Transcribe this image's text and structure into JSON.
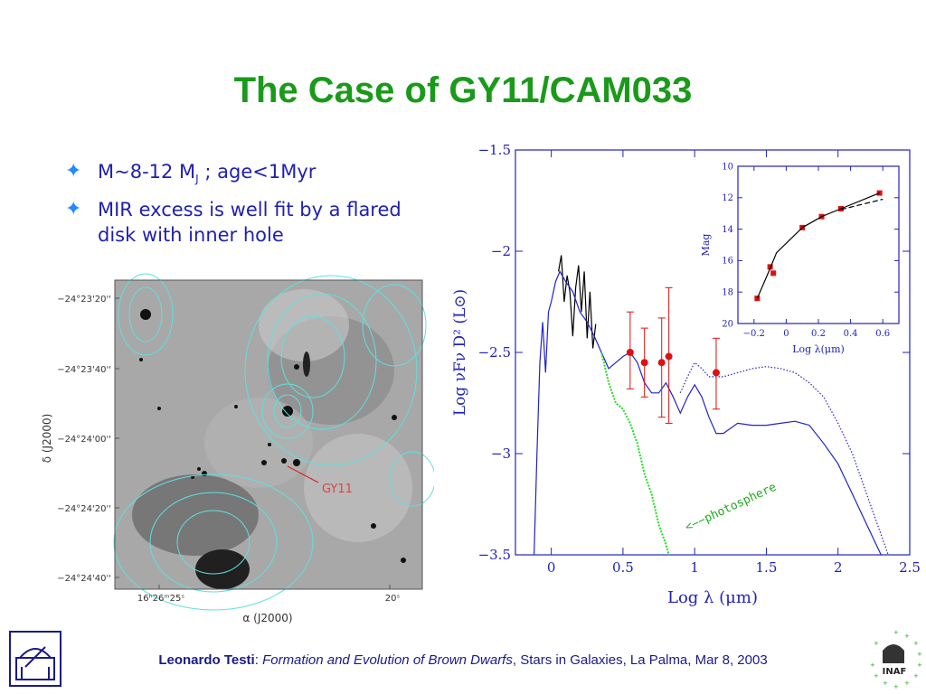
{
  "slide": {
    "title": "The Case of GY11/CAM033",
    "bullets": [
      {
        "pre": "M~8-12 M",
        "sub": "J",
        "post": " ; age<1Myr"
      },
      {
        "text_line1": "MIR excess is well fit by a flared",
        "text_line2": "disk with inner hole"
      }
    ],
    "footer": {
      "author": "Leonardo Testi",
      "sep": ": ",
      "talk": "Formation and Evolution of Brown Dwarfs",
      "rest": ", Stars in Galaxies, La Palma, Mar 8, 2003"
    },
    "logo_right_text": "INAF"
  },
  "image_panel": {
    "dec_ticks": [
      "−24°23'20''",
      "−24°23'40''",
      "−24°24'00''",
      "−24°24'20''",
      "−24°24'40''"
    ],
    "ra_tick_left": "16ʰ26ᵐ25ˢ",
    "ra_tick_right": "20ˢ",
    "ylabel": "δ (J2000)",
    "xlabel": "α (J2000)",
    "source_label": "GY11"
  },
  "chart_data": [
    {
      "type": "line",
      "xlabel": "Log λ (μm)",
      "ylabel": "Log νFν D² (L⊙)",
      "xlim": [
        -0.25,
        2.5
      ],
      "ylim": [
        -3.5,
        -1.5
      ],
      "xticks": [
        0,
        0.5,
        1,
        1.5,
        2,
        2.5
      ],
      "xticklabels": [
        "0",
        "0.5",
        "1",
        "1.5",
        "2",
        "2.5"
      ],
      "yticks": [
        -3.5,
        -3,
        -2.5,
        -2,
        -1.5
      ],
      "yticklabels": [
        "−3.5",
        "−3",
        "−2.5",
        "−2",
        "−1.5"
      ],
      "annotation": "<−−photosphere",
      "series": [
        {
          "role": "observed-near-ir",
          "color": "#000000",
          "x": [
            0.05,
            0.07,
            0.09,
            0.11,
            0.13,
            0.15,
            0.17,
            0.19,
            0.21,
            0.23,
            0.25,
            0.27,
            0.29,
            0.31
          ],
          "y": [
            -2.1,
            -2.02,
            -2.25,
            -2.12,
            -2.2,
            -2.42,
            -2.18,
            -2.07,
            -2.3,
            -2.1,
            -2.43,
            -2.2,
            -2.48,
            -2.36
          ]
        },
        {
          "role": "disk-model",
          "color": "#2222cc",
          "x": [
            -0.12,
            -0.1,
            -0.08,
            -0.06,
            -0.04,
            -0.02,
            0,
            0.03,
            0.06,
            0.1,
            0.15,
            0.2,
            0.25,
            0.3,
            0.35,
            0.4,
            0.45,
            0.5,
            0.55,
            0.6,
            0.65,
            0.7,
            0.75,
            0.8,
            0.85,
            0.9,
            0.95,
            1,
            1.05,
            1.1,
            1.15,
            1.2,
            1.3,
            1.4,
            1.5,
            1.6,
            1.7,
            1.8,
            1.9,
            2,
            2.1,
            2.2,
            2.3
          ],
          "y": [
            -3.5,
            -3.0,
            -2.55,
            -2.35,
            -2.6,
            -2.3,
            -2.25,
            -2.15,
            -2.1,
            -2.15,
            -2.2,
            -2.3,
            -2.35,
            -2.42,
            -2.5,
            -2.58,
            -2.55,
            -2.52,
            -2.5,
            -2.55,
            -2.65,
            -2.7,
            -2.7,
            -2.65,
            -2.72,
            -2.8,
            -2.72,
            -2.66,
            -2.72,
            -2.82,
            -2.9,
            -2.9,
            -2.85,
            -2.86,
            -2.86,
            -2.85,
            -2.84,
            -2.86,
            -2.95,
            -3.05,
            -3.2,
            -3.35,
            -3.5
          ]
        },
        {
          "role": "disk-model-dotted",
          "color": "#2222cc",
          "x": [
            0.9,
            0.95,
            1,
            1.05,
            1.1,
            1.2,
            1.3,
            1.4,
            1.5,
            1.6,
            1.7,
            1.8,
            1.9,
            2,
            2.1,
            2.2,
            2.3,
            2.35
          ],
          "y": [
            -2.7,
            -2.62,
            -2.55,
            -2.58,
            -2.62,
            -2.62,
            -2.6,
            -2.58,
            -2.57,
            -2.58,
            -2.6,
            -2.65,
            -2.72,
            -2.85,
            -3.0,
            -3.2,
            -3.4,
            -3.5
          ]
        },
        {
          "role": "photosphere",
          "color": "#22dd22",
          "x": [
            0.35,
            0.4,
            0.45,
            0.5,
            0.55,
            0.6,
            0.65,
            0.7,
            0.75,
            0.8,
            0.82
          ],
          "y": [
            -2.5,
            -2.65,
            -2.75,
            -2.78,
            -2.85,
            -2.95,
            -3.1,
            -3.2,
            -3.35,
            -3.45,
            -3.5
          ]
        },
        {
          "role": "photometry",
          "color": "#dd1111",
          "marker": "circle",
          "x": [
            0.55,
            0.65,
            0.77,
            0.82,
            1.15
          ],
          "y": [
            -2.5,
            -2.55,
            -2.55,
            -2.52,
            -2.6
          ],
          "err_low": [
            -2.68,
            -2.72,
            -2.82,
            -2.85,
            -2.78
          ],
          "err_high": [
            -2.3,
            -2.38,
            -2.33,
            -2.18,
            -2.43
          ]
        }
      ]
    },
    {
      "type": "line",
      "xlabel": "Log λ(μm)",
      "ylabel": "Mag",
      "xlim": [
        -0.3,
        0.7
      ],
      "ylim": [
        20,
        10
      ],
      "xticks": [
        -0.2,
        0,
        0.2,
        0.4,
        0.6
      ],
      "xticklabels": [
        "−0.2",
        "0",
        "0.2",
        "0.4",
        "0.6"
      ],
      "yticks": [
        10,
        12,
        14,
        16,
        18,
        20
      ],
      "yticklabels": [
        "10",
        "12",
        "14",
        "16",
        "18",
        "20"
      ],
      "series": [
        {
          "role": "measured",
          "color": "#dd1111",
          "marker": "square",
          "x": [
            -0.18,
            -0.1,
            -0.08,
            0.1,
            0.22,
            0.34,
            0.58
          ],
          "y": [
            18.4,
            16.4,
            16.8,
            13.9,
            13.2,
            12.7,
            11.7
          ]
        },
        {
          "role": "model-solid",
          "color": "#000000",
          "x": [
            -0.18,
            -0.1,
            -0.06,
            0.1,
            0.22,
            0.34,
            0.58
          ],
          "y": [
            18.4,
            16.5,
            15.5,
            13.9,
            13.2,
            12.7,
            11.7
          ]
        },
        {
          "role": "model-dashed",
          "color": "#000000",
          "x": [
            0.34,
            0.6
          ],
          "y": [
            12.75,
            12.1
          ]
        }
      ]
    }
  ]
}
